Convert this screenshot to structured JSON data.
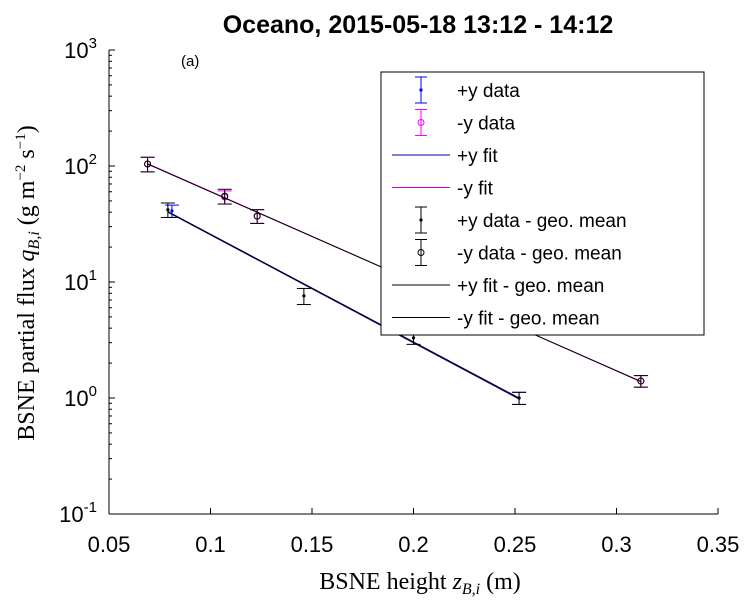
{
  "chart_data": {
    "type": "scatter",
    "title": "Oceano, 2015-05-18 13:12 - 14:12",
    "annotation": "(a)",
    "xlabel": "BSNE height z_{B,i} (m)",
    "xlabel_parts": {
      "main": "BSNE height ",
      "var": "z",
      "sub": "B,i",
      "unit": " (m)"
    },
    "ylabel": "BSNE partial flux q_{B,i} (g m^-2 s^-1)",
    "ylabel_parts": {
      "main": "BSNE partial flux ",
      "var": "q",
      "sub": "B,i",
      "unit_open": " (g m",
      "exp1": "−2",
      "mid": " s",
      "exp2": "−1",
      "unit_close": ")"
    },
    "xlim": [
      0.05,
      0.35
    ],
    "ylim": [
      0.1,
      1000
    ],
    "yscale": "log",
    "x_ticks": [
      0.05,
      0.1,
      0.15,
      0.2,
      0.25,
      0.3,
      0.35
    ],
    "x_tick_labels": [
      "0.05",
      "0.1",
      "0.15",
      "0.2",
      "0.25",
      "0.3",
      "0.35"
    ],
    "y_ticks": [
      {
        "value": 0.1,
        "base": "10",
        "exp": "-1"
      },
      {
        "value": 1,
        "base": "10",
        "exp": "0"
      },
      {
        "value": 10,
        "base": "10",
        "exp": "1"
      },
      {
        "value": 100,
        "base": "10",
        "exp": "2"
      },
      {
        "value": 1000,
        "base": "10",
        "exp": "3"
      }
    ],
    "grid": false,
    "legend_position": "top-right",
    "series": [
      {
        "name": "+y data",
        "kind": "points",
        "marker": "dot",
        "color": "#0000ff",
        "points": [
          {
            "x": 0.081,
            "y": 41,
            "err": 5
          },
          {
            "x": 0.252,
            "y": 1.0,
            "err": 0.12
          }
        ]
      },
      {
        "name": "-y data",
        "kind": "points",
        "marker": "circle",
        "color": "#ff00ff",
        "points": [
          {
            "x": 0.069,
            "y": 104,
            "err": 15
          },
          {
            "x": 0.107,
            "y": 54,
            "err": 7
          },
          {
            "x": 0.123,
            "y": 37,
            "err": 5
          },
          {
            "x": 0.312,
            "y": 1.4,
            "err": 0.16
          }
        ]
      },
      {
        "name": "+y fit",
        "kind": "line",
        "color": "#0000aa",
        "points": [
          {
            "x": 0.079,
            "y": 40
          },
          {
            "x": 0.252,
            "y": 0.98
          }
        ]
      },
      {
        "name": "-y fit",
        "kind": "line",
        "color": "#cc00cc",
        "points": [
          {
            "x": 0.069,
            "y": 105
          },
          {
            "x": 0.312,
            "y": 1.38
          }
        ]
      },
      {
        "name": "+y data - geo. mean",
        "kind": "points",
        "marker": "dot",
        "color": "#000000",
        "points": [
          {
            "x": 0.079,
            "y": 42,
            "err": 6
          },
          {
            "x": 0.146,
            "y": 7.6,
            "err": 1.2
          },
          {
            "x": 0.2,
            "y": 3.3,
            "err": 0.4
          },
          {
            "x": 0.252,
            "y": 1.0,
            "err": 0.12
          }
        ]
      },
      {
        "name": "-y data - geo. mean",
        "kind": "points",
        "marker": "circle",
        "color": "#000000",
        "points": [
          {
            "x": 0.069,
            "y": 104,
            "err": 15
          },
          {
            "x": 0.107,
            "y": 55,
            "err": 8
          },
          {
            "x": 0.123,
            "y": 37,
            "err": 5
          },
          {
            "x": 0.312,
            "y": 1.4,
            "err": 0.16
          }
        ]
      },
      {
        "name": "+y fit - geo. mean",
        "kind": "line",
        "color": "#000000",
        "points": [
          {
            "x": 0.079,
            "y": 40.5
          },
          {
            "x": 0.252,
            "y": 1.0
          }
        ]
      },
      {
        "name": "-y fit - geo. mean",
        "kind": "line",
        "color": "#000000",
        "points": [
          {
            "x": 0.069,
            "y": 104
          },
          {
            "x": 0.312,
            "y": 1.39
          }
        ]
      }
    ]
  }
}
